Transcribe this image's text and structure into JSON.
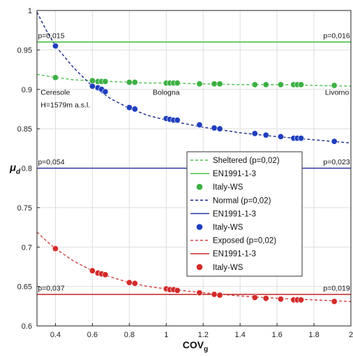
{
  "chart_data": {
    "type": "scatter",
    "xlabel": "COV",
    "xlabel_sub": "g",
    "ylabel": "μ",
    "ylabel_sub": "d",
    "xlim": [
      0.3,
      2.0
    ],
    "ylim": [
      0.6,
      1.0
    ],
    "xticks": [
      0.4,
      0.6,
      0.8,
      1.0,
      1.2,
      1.4,
      1.6,
      1.8,
      2.0
    ],
    "xtick_labels": [
      "0.4",
      "0.6",
      "0.8",
      "1",
      "1.2",
      "1.4",
      "1.6",
      "1.8",
      "2"
    ],
    "yticks": [
      0.6,
      0.65,
      0.7,
      0.75,
      0.8,
      0.85,
      0.9,
      0.95,
      1.0
    ],
    "ytick_labels": [
      "0.6",
      "0.65",
      "0.7",
      "0.75",
      "0.8",
      "0.85",
      "0.9",
      "0.95",
      "1"
    ],
    "grid": true,
    "legend_position": "center-right",
    "series": [
      {
        "name": "Sheltered (p=0,02)",
        "kind": "fit",
        "color": "#4cc04c",
        "dash": true,
        "x": [
          0.3,
          0.4,
          0.5,
          0.6,
          0.7,
          0.8,
          0.9,
          1.0,
          1.2,
          1.4,
          1.6,
          1.8,
          2.0
        ],
        "y": [
          0.919,
          0.915,
          0.912,
          0.911,
          0.91,
          0.909,
          0.908,
          0.908,
          0.907,
          0.906,
          0.906,
          0.905,
          0.904
        ]
      },
      {
        "name": "EN1991-1-3",
        "kind": "hline",
        "color": "#4cc04c",
        "y": 0.96
      },
      {
        "name": "Italy-WS",
        "kind": "points",
        "color": "#3cb043",
        "x": [
          0.4,
          0.6,
          0.63,
          0.65,
          0.67,
          0.8,
          0.83,
          1.0,
          1.02,
          1.04,
          1.06,
          1.18,
          1.26,
          1.29,
          1.48,
          1.54,
          1.62,
          1.69,
          1.71,
          1.73,
          1.91
        ],
        "y": [
          0.915,
          0.911,
          0.91,
          0.91,
          0.91,
          0.909,
          0.909,
          0.908,
          0.908,
          0.908,
          0.908,
          0.907,
          0.907,
          0.907,
          0.906,
          0.906,
          0.906,
          0.906,
          0.906,
          0.906,
          0.905
        ]
      },
      {
        "name": "Normal (p=0,02)",
        "kind": "fit",
        "color": "#1a2a8a",
        "dash": true,
        "x": [
          0.3,
          0.35,
          0.4,
          0.5,
          0.6,
          0.7,
          0.8,
          0.9,
          1.0,
          1.2,
          1.4,
          1.6,
          1.8,
          2.0
        ],
        "y": [
          0.998,
          0.975,
          0.955,
          0.927,
          0.904,
          0.888,
          0.876,
          0.867,
          0.861,
          0.852,
          0.845,
          0.84,
          0.836,
          0.832
        ]
      },
      {
        "name": "EN1991-1-3",
        "kind": "hline",
        "color": "#2a36a0",
        "y": 0.8
      },
      {
        "name": "Italy-WS",
        "kind": "points",
        "color": "#1f3fbf",
        "x": [
          0.4,
          0.6,
          0.63,
          0.65,
          0.67,
          0.8,
          0.83,
          1.0,
          1.02,
          1.04,
          1.06,
          1.18,
          1.26,
          1.29,
          1.48,
          1.54,
          1.62,
          1.69,
          1.71,
          1.73,
          1.91
        ],
        "y": [
          0.955,
          0.904,
          0.902,
          0.9,
          0.897,
          0.877,
          0.875,
          0.863,
          0.862,
          0.861,
          0.861,
          0.855,
          0.851,
          0.85,
          0.844,
          0.842,
          0.84,
          0.838,
          0.838,
          0.838,
          0.834
        ]
      },
      {
        "name": "Exposed (p=0,02)",
        "kind": "fit",
        "color": "#d04040",
        "dash": true,
        "x": [
          0.3,
          0.35,
          0.4,
          0.5,
          0.6,
          0.7,
          0.8,
          0.9,
          1.0,
          1.2,
          1.4,
          1.6,
          1.8,
          2.0
        ],
        "y": [
          0.719,
          0.708,
          0.698,
          0.682,
          0.67,
          0.662,
          0.655,
          0.65,
          0.647,
          0.642,
          0.638,
          0.635,
          0.633,
          0.631
        ]
      },
      {
        "name": "EN1991-1-3",
        "kind": "hline",
        "color": "#c83030",
        "y": 0.64
      },
      {
        "name": "Italy-WS",
        "kind": "points",
        "color": "#d42a2a",
        "x": [
          0.4,
          0.6,
          0.63,
          0.65,
          0.67,
          0.8,
          0.83,
          1.0,
          1.02,
          1.04,
          1.06,
          1.18,
          1.26,
          1.29,
          1.48,
          1.54,
          1.62,
          1.69,
          1.71,
          1.73,
          1.91
        ],
        "y": [
          0.698,
          0.67,
          0.667,
          0.666,
          0.665,
          0.655,
          0.654,
          0.647,
          0.646,
          0.646,
          0.645,
          0.642,
          0.64,
          0.639,
          0.636,
          0.635,
          0.634,
          0.633,
          0.633,
          0.633,
          0.631
        ]
      }
    ],
    "annotations": [
      {
        "text": "p=0,015",
        "x": 0.305,
        "y": 0.965,
        "anchor": "start"
      },
      {
        "text": "p=0,016",
        "x": 1.995,
        "y": 0.965,
        "anchor": "end"
      },
      {
        "text": "p=0,054",
        "x": 0.305,
        "y": 0.805,
        "anchor": "start"
      },
      {
        "text": "p=0,023",
        "x": 1.995,
        "y": 0.805,
        "anchor": "end"
      },
      {
        "text": "p=0,037",
        "x": 0.305,
        "y": 0.645,
        "anchor": "start"
      },
      {
        "text": "p=0,019",
        "x": 1.995,
        "y": 0.645,
        "anchor": "end"
      },
      {
        "text": "Ceresole",
        "x": 0.32,
        "y": 0.893,
        "anchor": "start"
      },
      {
        "text": "H=1579m a.s.l.",
        "x": 0.32,
        "y": 0.877,
        "anchor": "start"
      },
      {
        "text": "Bologna",
        "x": 1.0,
        "y": 0.893,
        "anchor": "middle"
      },
      {
        "text": "Livorno",
        "x": 1.99,
        "y": 0.893,
        "anchor": "end"
      }
    ]
  }
}
